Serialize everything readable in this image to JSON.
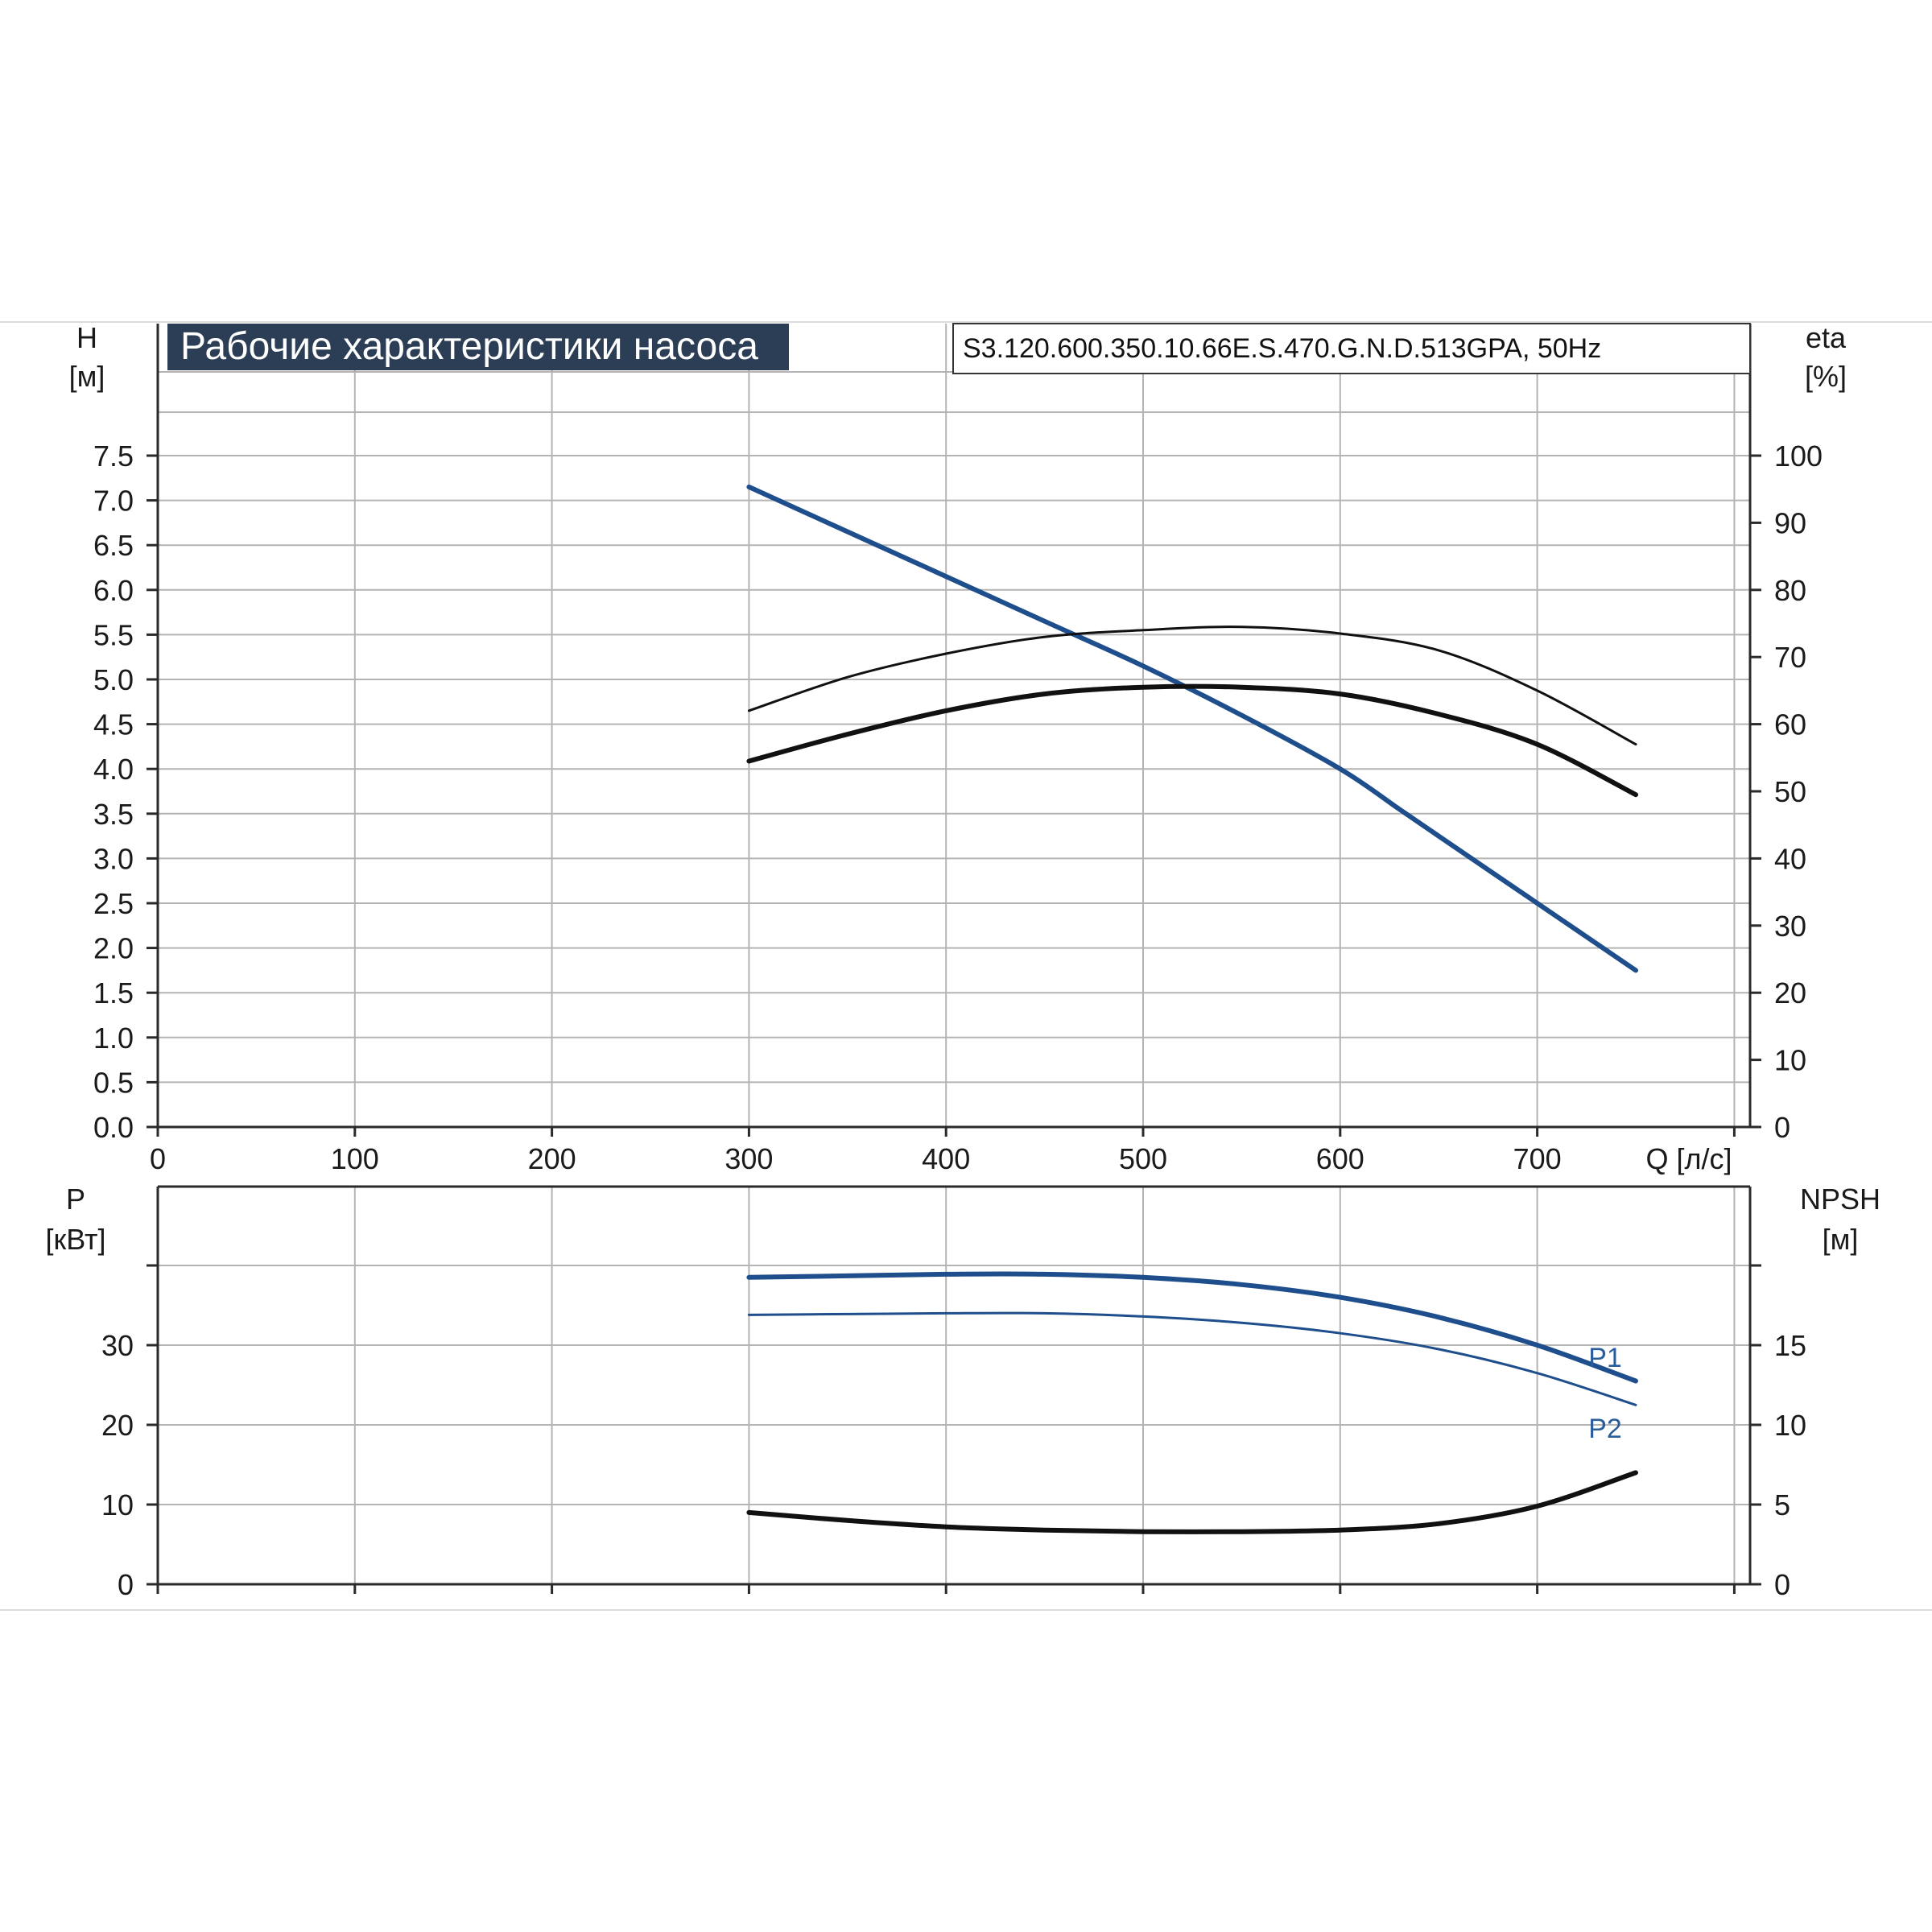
{
  "colors": {
    "grid": "#b4b4b4",
    "axis": "#2a2a2a",
    "blue": "#1f4e8c",
    "black": "#111111",
    "title_bg": "#2c3e55"
  },
  "header": {
    "title": "Рабочие характеристики насоса",
    "model": "S3.120.600.350.10.66E.S.470.G.N.D.513GPA, 50Hz"
  },
  "chart_data": [
    {
      "type": "line",
      "name": "top",
      "xlabel": "Q [л/с]",
      "left_axis": {
        "label": "H",
        "unit": "[м]",
        "ticks": [
          "0.0",
          "0.5",
          "1.0",
          "1.5",
          "2.0",
          "2.5",
          "3.0",
          "3.5",
          "4.0",
          "4.5",
          "5.0",
          "5.5",
          "6.0",
          "6.5",
          "7.0",
          "7.5"
        ],
        "range": [
          0,
          7.5
        ]
      },
      "right_axis": {
        "label": "eta",
        "unit": "[%]",
        "ticks": [
          "0",
          "10",
          "20",
          "30",
          "40",
          "50",
          "60",
          "70",
          "80",
          "90",
          "100"
        ],
        "range": [
          0,
          100
        ]
      },
      "x_ticks": [
        "0",
        "100",
        "200",
        "300",
        "400",
        "500",
        "600",
        "700"
      ],
      "xlim": [
        0,
        800
      ],
      "grid": true,
      "series": [
        {
          "key": "H",
          "axis": "left",
          "color": "blue",
          "width": 6,
          "x": [
            300,
            350,
            400,
            450,
            500,
            550,
            600,
            630,
            650,
            700,
            750
          ],
          "y": [
            7.15,
            6.65,
            6.15,
            5.65,
            5.15,
            4.6,
            4.0,
            3.55,
            3.25,
            2.5,
            1.75
          ]
        },
        {
          "key": "eta1",
          "axis": "right",
          "color": "black",
          "width": 3,
          "x": [
            300,
            350,
            400,
            450,
            500,
            550,
            600,
            650,
            700,
            750
          ],
          "y": [
            62,
            67,
            70.5,
            73,
            74,
            74.5,
            73.5,
            71,
            65,
            57
          ]
        },
        {
          "key": "eta2",
          "axis": "right",
          "color": "black",
          "width": 6,
          "x": [
            300,
            350,
            400,
            450,
            500,
            550,
            600,
            650,
            700,
            750
          ],
          "y": [
            54.5,
            58.5,
            62,
            64.5,
            65.5,
            65.5,
            64.5,
            61.5,
            57,
            49.5
          ]
        }
      ]
    },
    {
      "type": "line",
      "name": "bottom",
      "left_axis": {
        "label": "P",
        "unit": "[кВт]",
        "ticks": [
          "0",
          "10",
          "20",
          "30"
        ],
        "range": [
          0,
          40
        ]
      },
      "right_axis": {
        "label": "NPSH",
        "unit": "[м]",
        "ticks": [
          "0",
          "5",
          "10",
          "15"
        ],
        "range": [
          0,
          20
        ]
      },
      "xlim": [
        0,
        800
      ],
      "grid": true,
      "series": [
        {
          "key": "P1",
          "name": "P1",
          "axis": "left",
          "color": "blue",
          "width": 6,
          "x": [
            300,
            350,
            400,
            450,
            500,
            550,
            600,
            650,
            700,
            750
          ],
          "y": [
            38.5,
            38.7,
            38.9,
            38.9,
            38.5,
            37.6,
            36,
            33.5,
            30,
            25.5
          ]
        },
        {
          "key": "P2",
          "name": "P2",
          "axis": "left",
          "color": "blue",
          "width": 3,
          "x": [
            300,
            350,
            400,
            450,
            500,
            550,
            600,
            650,
            700,
            750
          ],
          "y": [
            33.8,
            33.9,
            34,
            34,
            33.6,
            32.8,
            31.5,
            29.5,
            26.5,
            22.5
          ]
        },
        {
          "key": "NPSH",
          "axis": "right",
          "color": "black",
          "width": 6,
          "x": [
            300,
            350,
            400,
            450,
            500,
            550,
            600,
            650,
            700,
            750
          ],
          "y": [
            4.5,
            4.0,
            3.6,
            3.4,
            3.3,
            3.3,
            3.4,
            3.8,
            4.9,
            7.0
          ]
        }
      ]
    }
  ]
}
